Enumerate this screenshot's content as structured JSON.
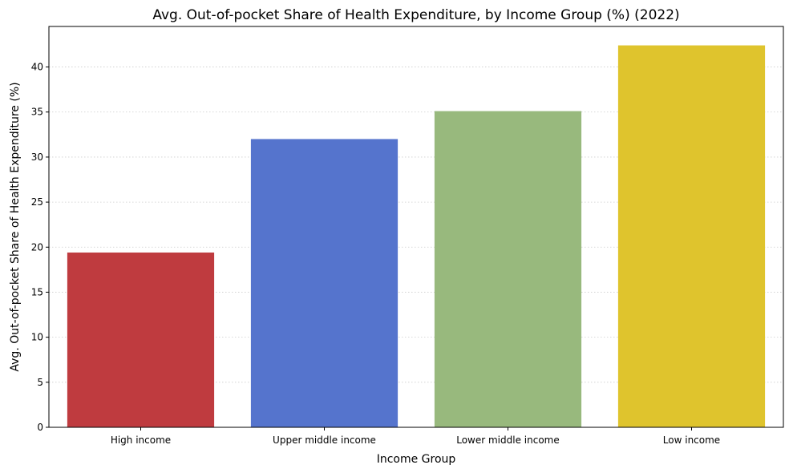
{
  "chart_data": {
    "type": "bar",
    "title": "Avg. Out-of-pocket Share of Health Expenditure, by Income Group (%) (2022)",
    "xlabel": "Income Group",
    "ylabel": "Avg. Out-of-pocket Share of Health Expenditure (%)",
    "categories": [
      "High income",
      "Upper middle income",
      "Lower middle income",
      "Low income"
    ],
    "values": [
      19.4,
      32.0,
      35.1,
      42.4
    ],
    "colors": [
      "#bf3b3f",
      "#5574cd",
      "#98b97d",
      "#dfc42d"
    ],
    "ylim": [
      0,
      44.5
    ],
    "yticks": [
      0,
      5,
      10,
      15,
      20,
      25,
      30,
      35,
      40
    ],
    "grid": "y-dotted",
    "legend": "none"
  }
}
